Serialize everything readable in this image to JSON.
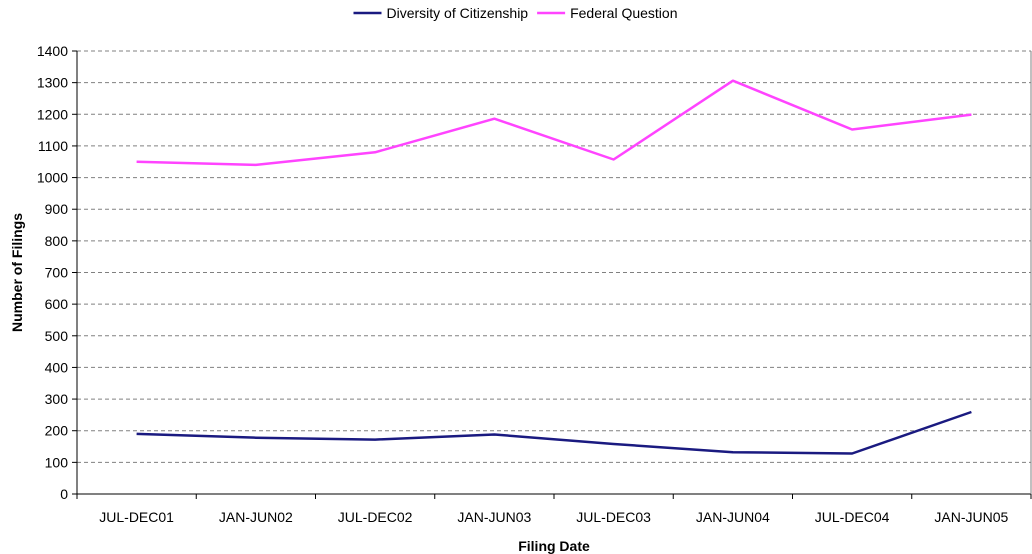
{
  "chart_data": {
    "type": "line",
    "title": "",
    "xlabel": "Filing Date",
    "ylabel": "Number of Filings",
    "categories": [
      "JUL-DEC01",
      "JAN-JUN02",
      "JUL-DEC02",
      "JAN-JUN03",
      "JUL-DEC03",
      "JAN-JUN04",
      "JUL-DEC04",
      "JAN-JUN05"
    ],
    "ylim": [
      0,
      1400
    ],
    "yticks": [
      0,
      100,
      200,
      300,
      400,
      500,
      600,
      700,
      800,
      900,
      1000,
      1100,
      1200,
      1300,
      1400
    ],
    "grid": true,
    "legend_position": "top-center",
    "series": [
      {
        "name": "Diversity of Citizenship",
        "color": "#1a1a80",
        "values": [
          190,
          178,
          172,
          188,
          158,
          132,
          128,
          259
        ]
      },
      {
        "name": "Federal Question",
        "color": "#ff44ff",
        "values": [
          1050,
          1040,
          1080,
          1186,
          1057,
          1306,
          1152,
          1199
        ]
      }
    ]
  }
}
